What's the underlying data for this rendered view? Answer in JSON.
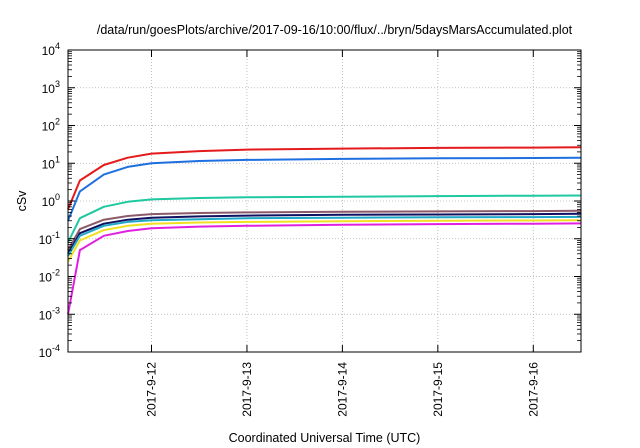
{
  "chart_data": {
    "type": "line",
    "title": "/data/run/goesPlots/archive/2017-09-16/10:00/flux/../bryn/5daysMarsAccumulated.plot",
    "xlabel": "Coordinated Universal Time (UTC)",
    "ylabel": "cSv",
    "yscale": "log",
    "ylim": [
      0.0001,
      10000
    ],
    "xlim": [
      "2017-09-11 03:00",
      "2017-09-16 12:00"
    ],
    "x_ticks": [
      "2017-9-12",
      "2017-9-13",
      "2017-9-14",
      "2017-9-15",
      "2017-9-16"
    ],
    "y_ticks": [
      {
        "base": "10",
        "exp": "-4"
      },
      {
        "base": "10",
        "exp": "-3"
      },
      {
        "base": "10",
        "exp": "-2"
      },
      {
        "base": "10",
        "exp": "-1"
      },
      {
        "base": "10",
        "exp": "0"
      },
      {
        "base": "10",
        "exp": "1"
      },
      {
        "base": "10",
        "exp": "2"
      },
      {
        "base": "10",
        "exp": "3"
      },
      {
        "base": "10",
        "exp": "4"
      }
    ],
    "grid": true,
    "legend": "none",
    "series": [
      {
        "color": "#e41a1c",
        "x": [
          "2017-09-11 03:00",
          "2017-09-11 06:00",
          "2017-09-11 12:00",
          "2017-09-11 18:00",
          "2017-09-12 00:00",
          "2017-09-12 12:00",
          "2017-09-13 00:00",
          "2017-09-14 00:00",
          "2017-09-15 00:00",
          "2017-09-16 00:00",
          "2017-09-16 12:00"
        ],
        "y": [
          0.6,
          3.5,
          9,
          14,
          18,
          21,
          23,
          24.5,
          25.5,
          26,
          26.5
        ]
      },
      {
        "color": "#1e6fe0",
        "x": [
          "2017-09-11 03:00",
          "2017-09-11 06:00",
          "2017-09-11 12:00",
          "2017-09-11 18:00",
          "2017-09-12 00:00",
          "2017-09-12 12:00",
          "2017-09-13 00:00",
          "2017-09-14 00:00",
          "2017-09-15 00:00",
          "2017-09-16 00:00",
          "2017-09-16 12:00"
        ],
        "y": [
          0.3,
          1.8,
          5,
          8,
          10,
          11.5,
          12.3,
          13,
          13.5,
          13.8,
          14
        ]
      },
      {
        "color": "#1ec8a0",
        "x": [
          "2017-09-11 03:00",
          "2017-09-11 06:00",
          "2017-09-11 12:00",
          "2017-09-11 18:00",
          "2017-09-12 00:00",
          "2017-09-12 12:00",
          "2017-09-13 00:00",
          "2017-09-14 00:00",
          "2017-09-15 00:00",
          "2017-09-16 00:00",
          "2017-09-16 12:00"
        ],
        "y": [
          0.08,
          0.35,
          0.7,
          0.95,
          1.1,
          1.2,
          1.25,
          1.3,
          1.35,
          1.38,
          1.4
        ]
      },
      {
        "color": "#8b5a6a",
        "x": [
          "2017-09-11 03:00",
          "2017-09-11 06:00",
          "2017-09-11 12:00",
          "2017-09-11 18:00",
          "2017-09-12 00:00",
          "2017-09-12 12:00",
          "2017-09-13 00:00",
          "2017-09-14 00:00",
          "2017-09-15 00:00",
          "2017-09-16 00:00",
          "2017-09-16 12:00"
        ],
        "y": [
          0.05,
          0.18,
          0.32,
          0.4,
          0.45,
          0.48,
          0.5,
          0.52,
          0.53,
          0.54,
          0.55
        ]
      },
      {
        "color": "#101060",
        "x": [
          "2017-09-11 03:00",
          "2017-09-11 06:00",
          "2017-09-11 12:00",
          "2017-09-11 18:00",
          "2017-09-12 00:00",
          "2017-09-12 12:00",
          "2017-09-13 00:00",
          "2017-09-14 00:00",
          "2017-09-15 00:00",
          "2017-09-16 00:00",
          "2017-09-16 12:00"
        ],
        "y": [
          0.04,
          0.14,
          0.25,
          0.32,
          0.36,
          0.39,
          0.41,
          0.43,
          0.44,
          0.45,
          0.46
        ]
      },
      {
        "color": "#20a8c8",
        "x": [
          "2017-09-11 03:00",
          "2017-09-11 06:00",
          "2017-09-11 12:00",
          "2017-09-11 18:00",
          "2017-09-12 00:00",
          "2017-09-12 12:00",
          "2017-09-13 00:00",
          "2017-09-14 00:00",
          "2017-09-15 00:00",
          "2017-09-16 00:00",
          "2017-09-16 12:00"
        ],
        "y": [
          0.035,
          0.12,
          0.22,
          0.28,
          0.31,
          0.33,
          0.35,
          0.36,
          0.37,
          0.375,
          0.38
        ]
      },
      {
        "color": "#f0e020",
        "x": [
          "2017-09-11 03:00",
          "2017-09-11 06:00",
          "2017-09-11 12:00",
          "2017-09-11 18:00",
          "2017-09-12 00:00",
          "2017-09-12 12:00",
          "2017-09-13 00:00",
          "2017-09-14 00:00",
          "2017-09-15 00:00",
          "2017-09-16 00:00",
          "2017-09-16 12:00"
        ],
        "y": [
          0.025,
          0.09,
          0.17,
          0.22,
          0.25,
          0.27,
          0.28,
          0.29,
          0.3,
          0.305,
          0.31
        ]
      },
      {
        "color": "#e020e0",
        "x": [
          "2017-09-11 03:00",
          "2017-09-11 06:00",
          "2017-09-11 12:00",
          "2017-09-11 18:00",
          "2017-09-12 00:00",
          "2017-09-12 12:00",
          "2017-09-13 00:00",
          "2017-09-14 00:00",
          "2017-09-15 00:00",
          "2017-09-16 00:00",
          "2017-09-16 12:00"
        ],
        "y": [
          0.001,
          0.05,
          0.12,
          0.16,
          0.19,
          0.21,
          0.22,
          0.235,
          0.245,
          0.25,
          0.255
        ]
      }
    ]
  }
}
